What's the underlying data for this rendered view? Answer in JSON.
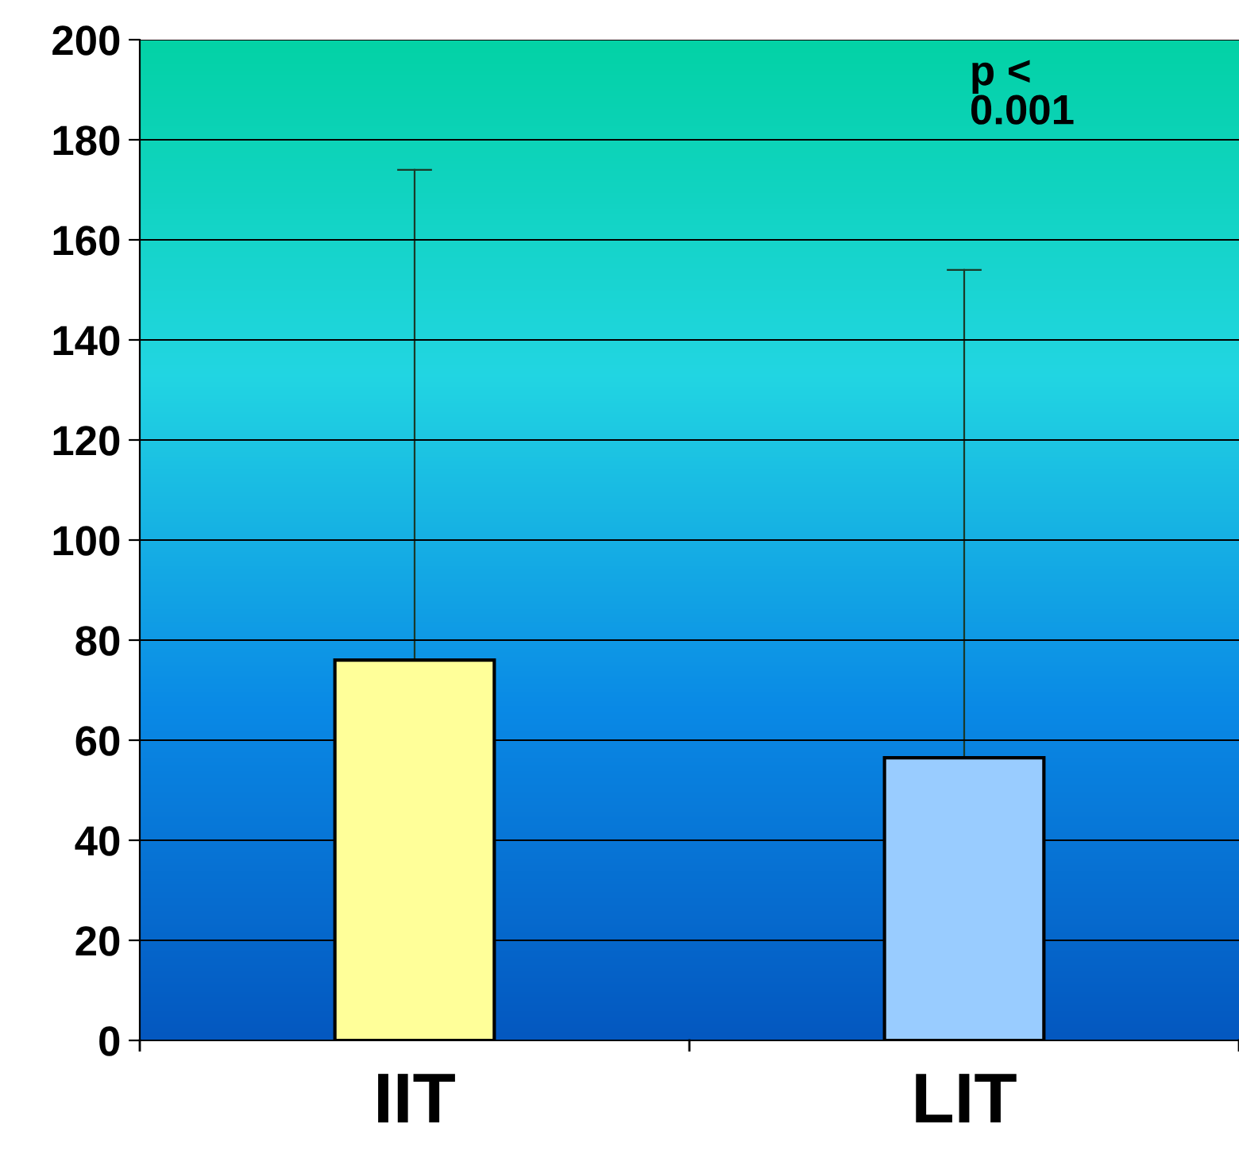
{
  "chart_data": {
    "type": "bar",
    "categories": [
      "IIT",
      "LIT"
    ],
    "values": [
      76,
      56.5
    ],
    "colors": [
      "#ffff99",
      "#99ccff"
    ],
    "errors": [
      [
        76,
        174
      ],
      [
        56.5,
        154
      ]
    ],
    "ylim": [
      0,
      200
    ],
    "yticks": [
      0,
      20,
      40,
      60,
      80,
      100,
      120,
      140,
      160,
      180,
      200
    ],
    "grid": "y",
    "legend": false,
    "annotations": [
      "p <\n0.001"
    ]
  }
}
